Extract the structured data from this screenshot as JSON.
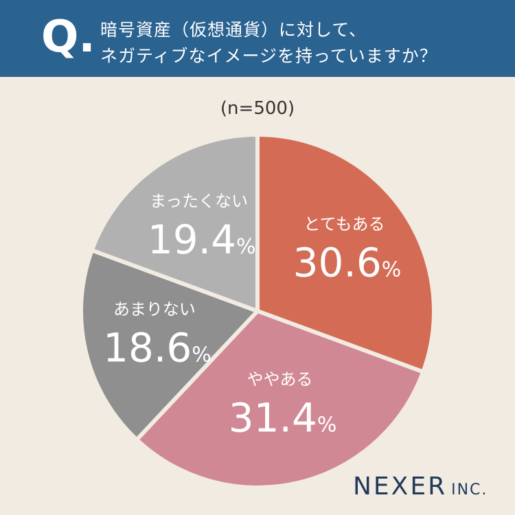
{
  "header": {
    "q_mark": "Q.",
    "question_line1": "暗号資産（仮想通貨）に対して、",
    "question_line2": "ネガティブなイメージを持っていますか？"
  },
  "sample_size": "(n=500)",
  "brand": {
    "main": "NEXER",
    "sub": "INC."
  },
  "chart_data": {
    "type": "pie",
    "title": "",
    "categories": [
      "とてもある",
      "ややある",
      "あまりない",
      "まったくない"
    ],
    "values": [
      30.6,
      31.4,
      18.6,
      19.4
    ],
    "unit": "%",
    "colors": [
      "#d46b55",
      "#d08894",
      "#8f8f8f",
      "#b1b1b1"
    ],
    "start_angle": "12 o'clock",
    "direction": "clockwise",
    "legend": "none (labels on slices)"
  }
}
